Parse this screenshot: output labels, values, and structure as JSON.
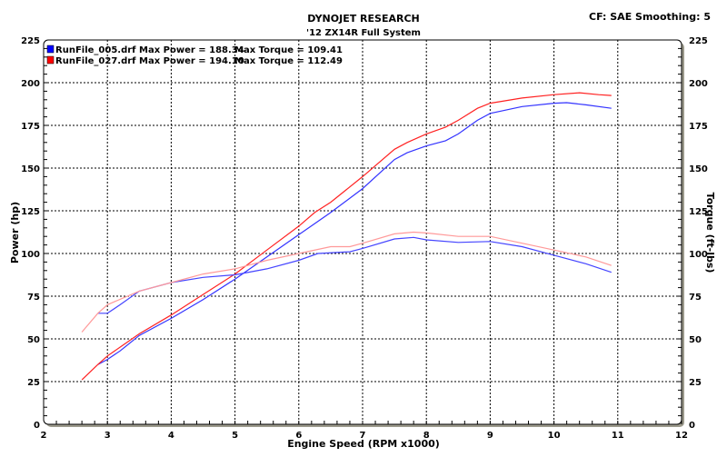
{
  "header": {
    "title": "DYNOJET RESEARCH",
    "subtitle": "'12 ZX14R Full System",
    "settings": "CF: SAE  Smoothing: 5"
  },
  "chart_data": {
    "type": "line",
    "title": "DYNOJET RESEARCH",
    "subtitle": "'12 ZX14R Full System",
    "xlabel": "Engine Speed (RPM x1000)",
    "ylabel_left": "Power (hp)",
    "ylabel_right": "Torque (ft-lbs)",
    "xlim": [
      2,
      12
    ],
    "ylim": [
      0,
      225
    ],
    "xticks": [
      "2",
      "3",
      "4",
      "5",
      "6",
      "7",
      "8",
      "9",
      "10",
      "11",
      "12"
    ],
    "yticks": [
      "0",
      "25",
      "50",
      "75",
      "100",
      "125",
      "150",
      "175",
      "200",
      "225"
    ],
    "grid": true,
    "legend_position": "top-left",
    "legend": [
      {
        "label": "RunFile_005.drf Max Power = 188.34",
        "torque_label": "Max Torque = 109.41",
        "color": "#0000ff"
      },
      {
        "label": "RunFile_027.drf Max Power = 194.10",
        "torque_label": "Max Torque = 112.49",
        "color": "#ff0000"
      }
    ],
    "series": [
      {
        "name": "RunFile_005.drf",
        "quantity": "power",
        "color": "#3333ff",
        "x": [
          2.85,
          3.0,
          3.2,
          3.5,
          4.0,
          4.5,
          5.0,
          5.5,
          6.0,
          6.5,
          7.0,
          7.5,
          7.7,
          8.0,
          8.3,
          8.5,
          8.8,
          9.0,
          9.5,
          10.0,
          10.2,
          10.5,
          10.9
        ],
        "y": [
          35,
          38,
          43,
          52,
          62,
          73,
          85,
          98,
          111,
          124,
          138,
          155,
          159,
          163,
          166,
          170,
          178,
          182,
          186,
          188,
          188.3,
          187,
          185
        ]
      },
      {
        "name": "RunFile_027.drf",
        "quantity": "power",
        "color": "#ff2222",
        "x": [
          2.6,
          2.85,
          3.0,
          3.5,
          4.0,
          4.5,
          5.0,
          5.5,
          6.0,
          6.25,
          6.5,
          7.0,
          7.5,
          7.7,
          8.0,
          8.3,
          8.5,
          8.8,
          9.0,
          9.5,
          10.0,
          10.4,
          10.7,
          10.9
        ],
        "y": [
          26,
          35,
          40,
          53,
          64,
          76,
          88,
          102,
          116,
          124,
          130,
          145,
          161,
          165,
          170,
          174,
          178,
          185,
          188,
          191,
          193,
          194.1,
          193,
          192.5
        ]
      },
      {
        "name": "RunFile_005.drf",
        "quantity": "torque",
        "color": "#4444ff",
        "x": [
          2.85,
          3.0,
          3.2,
          3.5,
          4.0,
          4.5,
          5.0,
          5.5,
          6.0,
          6.3,
          6.8,
          7.0,
          7.5,
          7.8,
          8.0,
          8.5,
          9.0,
          9.5,
          10.0,
          10.5,
          10.9
        ],
        "y": [
          65,
          65,
          70,
          78,
          83,
          86,
          87.5,
          91,
          96,
          100,
          101,
          103,
          108.5,
          109.4,
          108,
          106.5,
          107,
          104,
          99,
          94,
          89
        ]
      },
      {
        "name": "RunFile_027.drf",
        "quantity": "torque",
        "color": "#ff9999",
        "x": [
          2.6,
          2.85,
          3.0,
          3.5,
          4.0,
          4.5,
          5.0,
          5.5,
          6.0,
          6.5,
          6.8,
          7.0,
          7.5,
          7.8,
          8.0,
          8.5,
          9.0,
          9.5,
          10.0,
          10.5,
          10.9
        ],
        "y": [
          54,
          65,
          70,
          78,
          83,
          88,
          91,
          96,
          100,
          104,
          104,
          106,
          111.5,
          112.5,
          112,
          110,
          110,
          106,
          102,
          98,
          93
        ]
      }
    ]
  }
}
